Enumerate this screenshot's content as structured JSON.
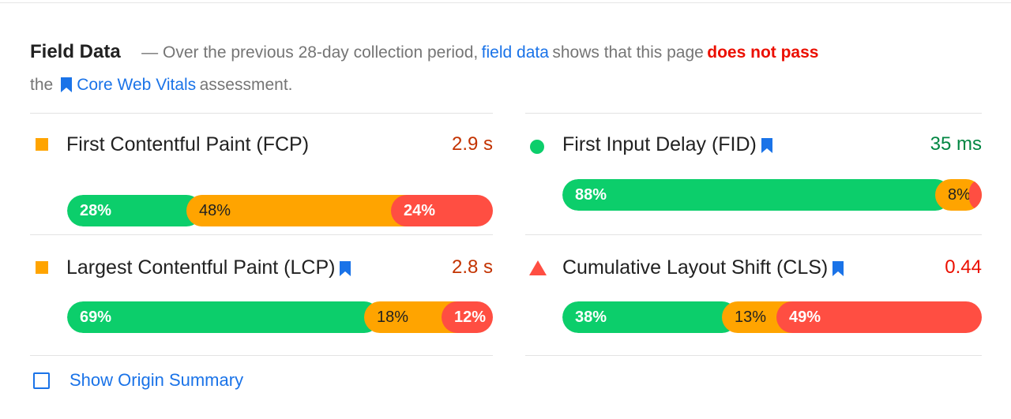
{
  "intro": {
    "title": "Field Data",
    "dash_text": "— Over the previous 28-day collection period,",
    "field_data_link": "field data",
    "shows_text": "shows that this page",
    "verdict": "does not pass",
    "the_text": "the",
    "cwv_link": "Core Web Vitals",
    "assessment_text": "assessment."
  },
  "metrics": [
    {
      "label": "First Contentful Paint (FCP)",
      "value": "2.9 s",
      "status": "average",
      "icon": "orange-square-icon",
      "core_web_vital": false,
      "distribution": [
        {
          "label": "28%",
          "fraction": 0.28
        },
        {
          "label": "48%",
          "fraction": 0.48
        },
        {
          "label": "24%",
          "fraction": 0.24
        }
      ]
    },
    {
      "label": "First Input Delay (FID)",
      "value": "35 ms",
      "status": "good",
      "icon": "green-circle-icon",
      "core_web_vital": true,
      "distribution": [
        {
          "label": "88%",
          "fraction": 0.88
        },
        {
          "label": "8%",
          "fraction": 0.08
        },
        {
          "label": "3%",
          "fraction": 0.03
        }
      ]
    },
    {
      "label": "Largest Contentful Paint (LCP)",
      "value": "2.8 s",
      "status": "average",
      "icon": "orange-square-icon",
      "core_web_vital": true,
      "distribution": [
        {
          "label": "69%",
          "fraction": 0.69
        },
        {
          "label": "18%",
          "fraction": 0.18
        },
        {
          "label": "12%",
          "fraction": 0.12
        }
      ]
    },
    {
      "label": "Cumulative Layout Shift (CLS)",
      "value": "0.44",
      "status": "poor",
      "icon": "red-triangle-icon",
      "core_web_vital": true,
      "distribution": [
        {
          "label": "38%",
          "fraction": 0.38
        },
        {
          "label": "13%",
          "fraction": 0.13
        },
        {
          "label": "49%",
          "fraction": 0.49
        }
      ]
    }
  ],
  "origin_summary": {
    "label": "Show Origin Summary",
    "checked": false
  },
  "colors": {
    "good": "#0cce6b",
    "average": "#ffa400",
    "poor": "#ff4e42",
    "link": "#1a73e8",
    "fail_text": "#eb0f00"
  }
}
